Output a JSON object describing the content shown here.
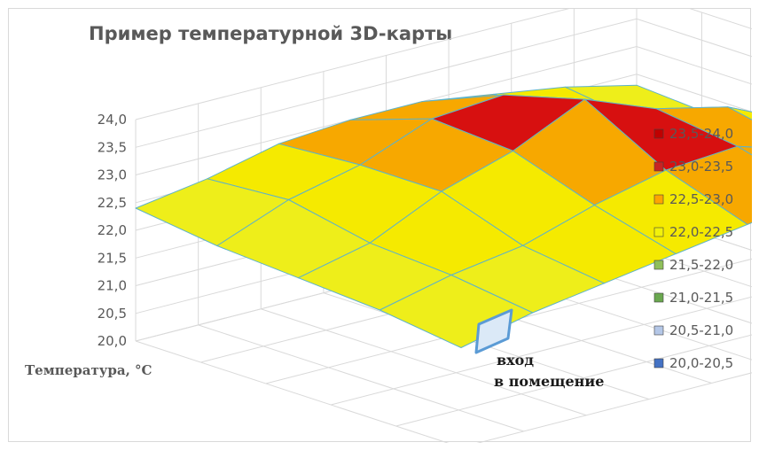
{
  "chart_data": {
    "type": "surface",
    "title": "Пример температурной 3D-карты",
    "zlabel": "Температура, °C",
    "zlim": [
      20.0,
      24.0
    ],
    "z_ticks": [
      "20,0",
      "20,5",
      "21,0",
      "21,5",
      "22,0",
      "22,5",
      "23,0",
      "23,5",
      "24,0"
    ],
    "grid": true,
    "grid_rows": 5,
    "grid_cols": 8,
    "values": [
      [
        22.4,
        22.6,
        22.9,
        23.0,
        23.0,
        22.8,
        22.6,
        22.3
      ],
      [
        22.2,
        22.7,
        23.0,
        23.5,
        23.6,
        22.9,
        22.4,
        22.2
      ],
      [
        22.1,
        22.4,
        23.0,
        23.4,
        24.0,
        23.5,
        23.2,
        22.6
      ],
      [
        22.0,
        22.3,
        22.5,
        22.9,
        23.2,
        23.3,
        22.9,
        22.6
      ],
      [
        21.8,
        22.1,
        22.3,
        22.5,
        22.7,
        22.9,
        23.0,
        22.7
      ]
    ],
    "legend_position": "right",
    "legend": [
      {
        "label": "23,5-24,0",
        "color": "#c00000"
      },
      {
        "label": "23,0-23,5",
        "color": "#c82323"
      },
      {
        "label": "22,5-23,0",
        "color": "#ffa500"
      },
      {
        "label": "22,0-22,5",
        "color": "#f2f20a"
      },
      {
        "label": "21,5-22,0",
        "color": "#8fbf5a"
      },
      {
        "label": "21,0-21,5",
        "color": "#6aa84f"
      },
      {
        "label": "20,5-21,0",
        "color": "#b4c7e7"
      },
      {
        "label": "20,0-20,5",
        "color": "#4472c4"
      }
    ],
    "annotation": [
      "вход",
      "в помещение"
    ]
  }
}
